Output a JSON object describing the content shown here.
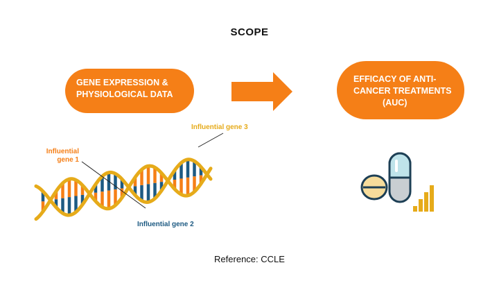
{
  "title": "SCOPE",
  "input_box": {
    "line1": "GENE EXPRESSION &",
    "line2": "PHYSIOLOGICAL DATA"
  },
  "output_box": {
    "line1": "EFFICACY  OF ANTI-",
    "line2": "CANCER TREATMENTS",
    "line3": "(AUC)"
  },
  "labels": {
    "gene1_line1": "Influential",
    "gene1_line2": "gene 1",
    "gene2": "Influential gene 2",
    "gene3": "Influential gene 3"
  },
  "reference": "Reference: CCLE",
  "colors": {
    "orange": "#f57f17",
    "dna_strand": "#e6ab1a",
    "dna_blue": "#1d5a82",
    "pill_blue": "#bfe3ea",
    "pill_gray": "#c9ced2",
    "pill_beige": "#f6dc9b",
    "bars": "#e6ab1a"
  },
  "icons": [
    "dna-helix-icon",
    "arrow-right-icon",
    "capsule-icon",
    "tablet-icon",
    "bar-chart-icon"
  ]
}
